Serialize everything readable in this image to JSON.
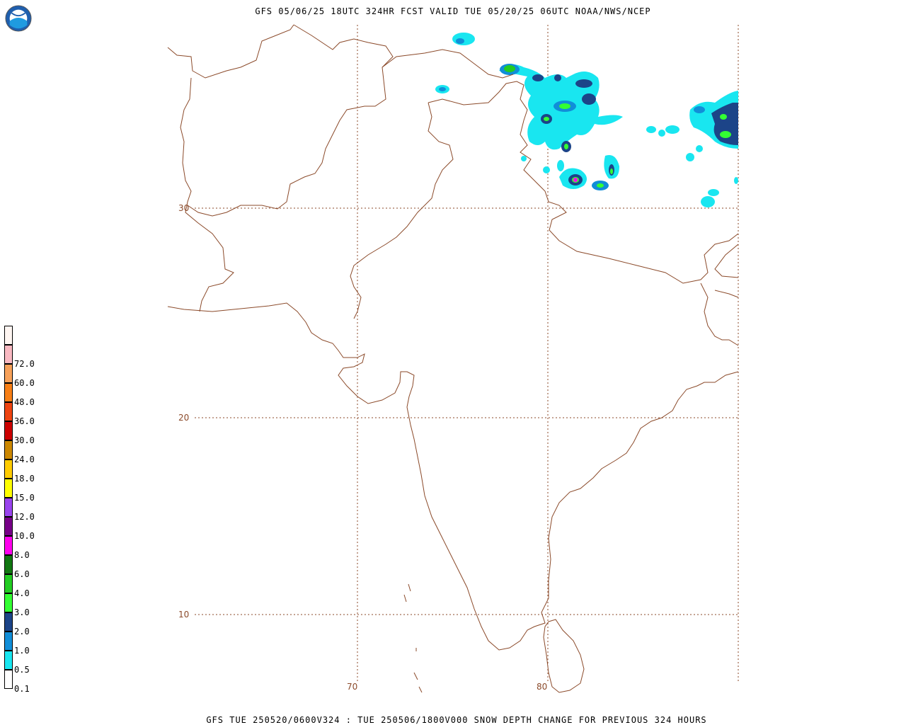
{
  "header": {
    "title": "GFS 05/06/25 18UTC 324HR FCST VALID TUE 05/20/25 06UTC NOAA/NWS/NCEP"
  },
  "footer": {
    "text": "GFS TUE 250520/0600V324 : TUE 250506/1800V000 SNOW DEPTH CHANGE FOR PREVIOUS 324 HOURS"
  },
  "logo": {
    "text": "NOAA"
  },
  "axes": {
    "lat_labels": [
      "30",
      "20",
      "10"
    ],
    "lon_labels": [
      "70",
      "80"
    ]
  },
  "legend": {
    "items": [
      {
        "label": "",
        "color": "#fff6f2"
      },
      {
        "label": "72.0",
        "color": "#f9b9c2"
      },
      {
        "label": "60.0",
        "color": "#f7a15a"
      },
      {
        "label": "48.0",
        "color": "#f77f16"
      },
      {
        "label": "36.0",
        "color": "#ee4411"
      },
      {
        "label": "30.0",
        "color": "#cc0000"
      },
      {
        "label": "24.0",
        "color": "#cc8800"
      },
      {
        "label": "18.0",
        "color": "#ffcc00"
      },
      {
        "label": "15.0",
        "color": "#ffff00"
      },
      {
        "label": "12.0",
        "color": "#9944ee"
      },
      {
        "label": "10.0",
        "color": "#770088"
      },
      {
        "label": "8.0",
        "color": "#ff00ee"
      },
      {
        "label": "6.0",
        "color": "#117711"
      },
      {
        "label": "4.0",
        "color": "#22cc22"
      },
      {
        "label": "3.0",
        "color": "#33ff33"
      },
      {
        "label": "2.0",
        "color": "#1c4488"
      },
      {
        "label": "1.0",
        "color": "#118ed8"
      },
      {
        "label": "0.5",
        "color": "#19e6f0"
      },
      {
        "label": "0.1",
        "color": "#ffffff"
      }
    ]
  },
  "colors": {
    "border": "#8b4a2a",
    "grid": "#8b4a2a"
  }
}
